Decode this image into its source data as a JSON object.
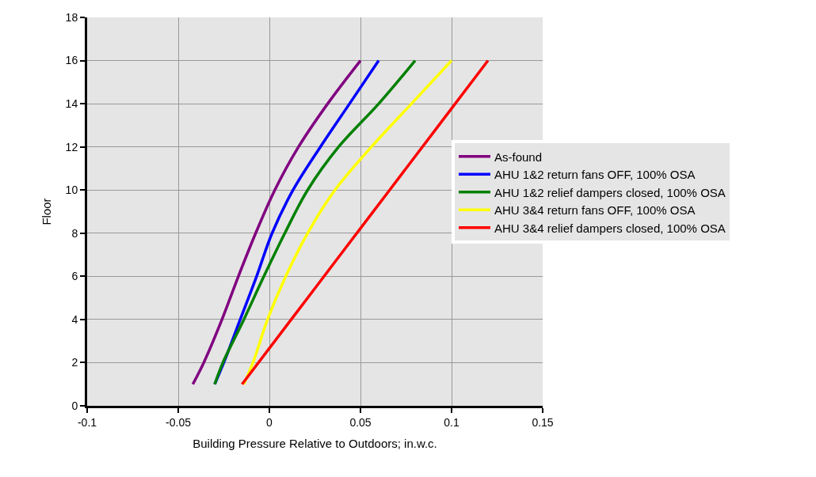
{
  "chart_data": {
    "type": "line",
    "xlabel": "Building Pressure Relative to Outdoors; in.w.c.",
    "ylabel": "Floor",
    "xlim": [
      -0.1,
      0.15
    ],
    "xticks": [
      -0.1,
      -0.05,
      0,
      0.05,
      0.1,
      0.15
    ],
    "ylim": [
      0,
      18
    ],
    "yticks": [
      0,
      2,
      4,
      6,
      8,
      10,
      12,
      14,
      16,
      18
    ],
    "grid": true,
    "legend": "right",
    "marker": "none",
    "line_style": "solid",
    "series": [
      {
        "name": "As-found",
        "color": "#800080",
        "x": [
          -0.042,
          -0.036,
          -0.026,
          -0.017,
          -0.0075,
          0.003,
          0.016,
          0.032,
          0.05
        ],
        "values": [
          1,
          2,
          4,
          6,
          8,
          10,
          12,
          14,
          16
        ]
      },
      {
        "name": "AHU 1&2 return fans OFF, 100% OSA",
        "color": "#0000ff",
        "x": [
          -0.03,
          -0.025,
          -0.016,
          -0.007,
          0.0015,
          0.013,
          0.028,
          0.044,
          0.06
        ],
        "values": [
          1,
          2,
          4,
          6,
          8,
          10,
          12,
          14,
          16
        ]
      },
      {
        "name": "AHU 1&2 relief dampers closed, 100% OSA",
        "color": "#008000",
        "x": [
          -0.03,
          -0.0255,
          -0.014,
          -0.003,
          0.0085,
          0.021,
          0.038,
          0.06,
          0.08
        ],
        "values": [
          1,
          2,
          4,
          6,
          8,
          10,
          12,
          14,
          16
        ]
      },
      {
        "name": "AHU 3&4 return fans OFF, 100% OSA",
        "color": "#ffff00",
        "x": [
          -0.014,
          -0.009,
          -0.001,
          0.009,
          0.021,
          0.036,
          0.056,
          0.078,
          0.1
        ],
        "values": [
          1,
          2,
          4,
          6,
          8,
          10,
          12,
          14,
          16
        ]
      },
      {
        "name": "AHU 3&4 relief dampers closed, 100% OSA",
        "color": "#ff0000",
        "x": [
          -0.015,
          0.012,
          0.039,
          0.066,
          0.093,
          0.12
        ],
        "values": [
          1,
          4,
          7,
          10,
          13,
          16
        ]
      }
    ]
  }
}
